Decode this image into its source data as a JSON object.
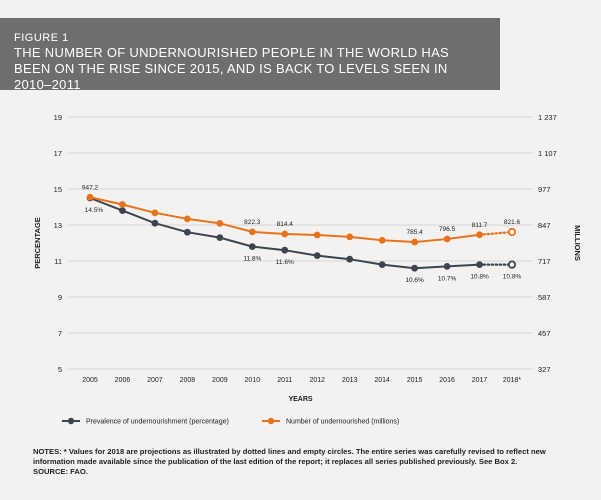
{
  "header": {
    "figure_label": "FIGURE 1",
    "title": "THE NUMBER OF UNDERNOURISHED PEOPLE IN THE WORLD HAS BEEN ON THE RISE SINCE 2015, AND IS BACK TO LEVELS SEEN IN 2010–2011"
  },
  "colors": {
    "header_bg": "#6e6e6e",
    "prevalence": "#3b4550",
    "number": "#e8731f",
    "grid": "#d6d6d6",
    "background": "#f3f2f0"
  },
  "chart_data": {
    "type": "line",
    "x": [
      "2005",
      "2006",
      "2007",
      "2008",
      "2009",
      "2010",
      "2011",
      "2012",
      "2013",
      "2014",
      "2015",
      "2016",
      "2017",
      "2018*"
    ],
    "xlabel": "YEARS",
    "ylabel_left": "PERCENTAGE",
    "ylabel_right": "MILLIONS",
    "left_axis": {
      "ticks": [
        "5",
        "7",
        "9",
        "11",
        "13",
        "15",
        "17",
        "19"
      ],
      "ylim": [
        5,
        19
      ]
    },
    "right_axis": {
      "ticks": [
        "327",
        "457",
        "587",
        "717",
        "847",
        "977",
        "1 107",
        "1 237"
      ],
      "ylim": [
        327,
        1237
      ]
    },
    "grid": true,
    "legend_position": "bottom",
    "projection_note": "2018 projected (dotted line, empty circle)",
    "series": [
      {
        "name": "Prevalence of undernourishment (percentage)",
        "axis": "left",
        "color": "#3b4550",
        "values": [
          14.5,
          13.8,
          13.1,
          12.6,
          12.3,
          11.8,
          11.6,
          11.3,
          11.1,
          10.8,
          10.6,
          10.7,
          10.8,
          10.8
        ],
        "labels": {
          "0": "14.5%",
          "5": "11.8%",
          "6": "11.6%",
          "10": "10.6%",
          "11": "10.7%",
          "12": "10.8%",
          "13": "10.8%"
        }
      },
      {
        "name": "Number of undernourished (millions)",
        "axis": "right",
        "color": "#e8731f",
        "values": [
          947.2,
          921,
          891,
          869,
          853,
          822.3,
          814.4,
          811,
          804,
          792,
          785.4,
          796.5,
          811.7,
          821.6
        ],
        "labels": {
          "0": "947.2",
          "5": "822.3",
          "6": "814.4",
          "10": "785.4",
          "11": "796.5",
          "12": "811.7",
          "13": "821.6"
        }
      }
    ]
  },
  "notes": {
    "line1": "NOTES: * Values for 2018 are projections as illustrated by dotted lines and empty circles. The entire series was carefully revised to reflect new information made available since the publication of the last edition of the report; it replaces all series published previously. See Box 2.",
    "line2": "SOURCE: FAO."
  }
}
